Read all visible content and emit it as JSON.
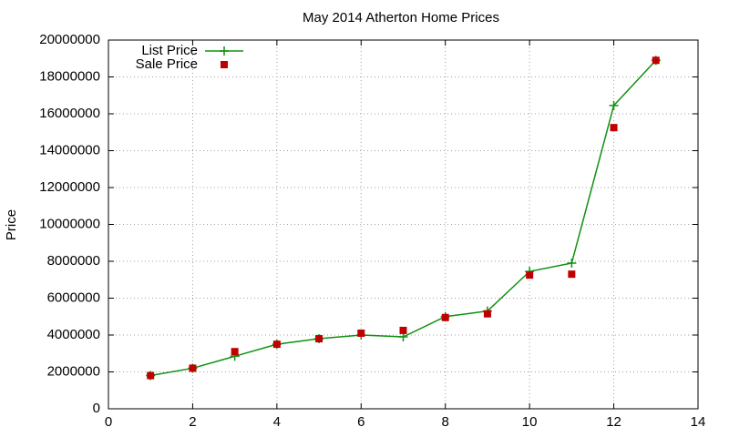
{
  "chart_data": {
    "type": "line",
    "title": "May 2014 Atherton Home Prices",
    "y_label": "Price",
    "x": [
      1,
      2,
      3,
      4,
      5,
      6,
      7,
      8,
      9,
      10,
      11,
      12,
      13
    ],
    "series": [
      {
        "name": "List Price",
        "color": "#109010",
        "mode": "lines+points",
        "values": [
          1800000,
          2200000,
          2850000,
          3500000,
          3800000,
          4000000,
          3900000,
          5000000,
          5300000,
          7450000,
          7900000,
          16450000,
          18900000
        ]
      },
      {
        "name": "Sale Price",
        "color": "#c00000",
        "mode": "points",
        "values": [
          1800000,
          2200000,
          3100000,
          3500000,
          3800000,
          4100000,
          4250000,
          4950000,
          5150000,
          7250000,
          7300000,
          15250000,
          18900000
        ]
      }
    ],
    "xlim": [
      0,
      14
    ],
    "xticks": [
      0,
      2,
      4,
      6,
      8,
      10,
      12,
      14
    ],
    "ylim": [
      0,
      20000000
    ],
    "yticks": [
      0,
      2000000,
      4000000,
      6000000,
      8000000,
      10000000,
      12000000,
      14000000,
      16000000,
      18000000,
      20000000
    ],
    "grid": true,
    "legend": "top-left"
  }
}
